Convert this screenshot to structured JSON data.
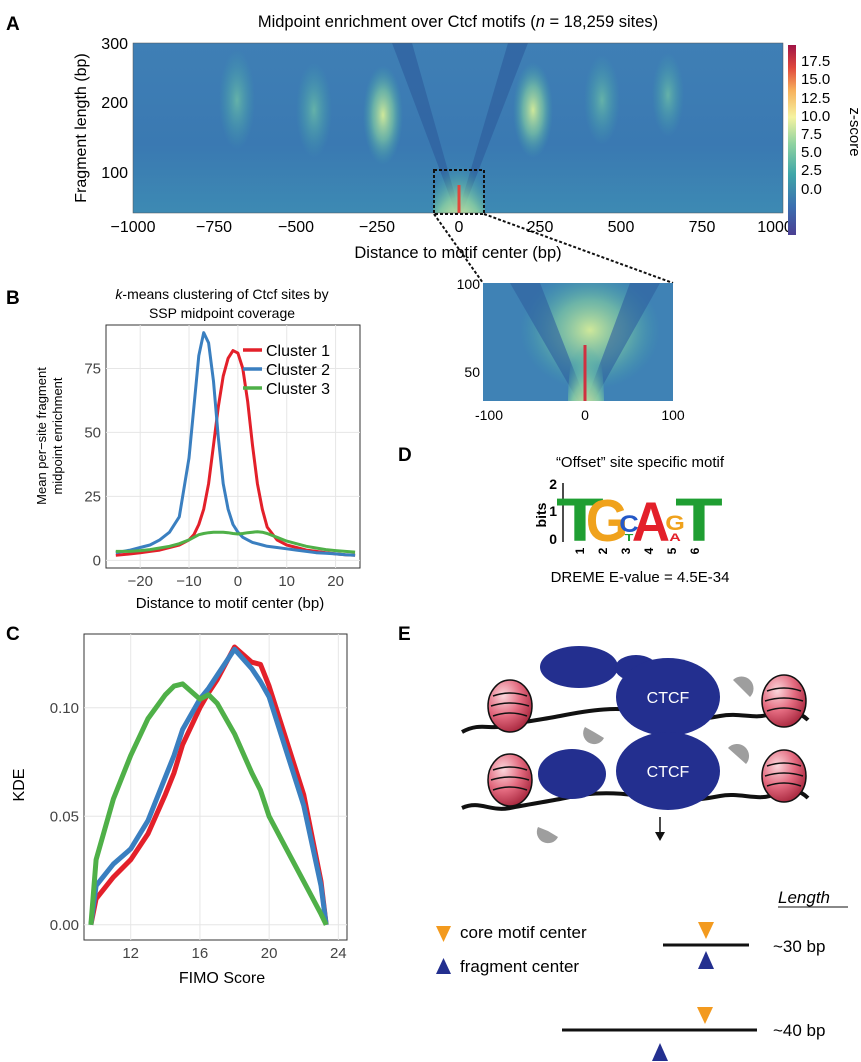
{
  "panels": {
    "A": {
      "letter": "A",
      "title_prefix": "Midpoint enrichment over Ctcf motifs (",
      "title_n": "n",
      "title_suffix": " = 18,259 sites)",
      "ylabel": "Fragment length (bp)",
      "xlabel": "Distance to motif center (bp)",
      "xticks": [
        "−1000",
        "−750",
        "−500",
        "−250",
        "0",
        "250",
        "500",
        "750",
        "1000"
      ],
      "yticks": [
        "300",
        "200",
        "100"
      ],
      "colorbar_label": "z-score",
      "colorbar_ticks": [
        "17.5",
        "15.0",
        "12.5",
        "10.0",
        "7.5",
        "5.0",
        "2.5",
        "0.0"
      ],
      "colors": [
        "#4b3f93",
        "#3b6fb0",
        "#3fa6a8",
        "#8fd3a0",
        "#f5f3a0",
        "#f7b15c",
        "#e0483c",
        "#a01446"
      ],
      "inset": {
        "yticks": [
          "100",
          "50"
        ],
        "xticks": [
          "-100",
          "0",
          "100"
        ]
      }
    },
    "B": {
      "letter": "B",
      "title_prefix": "k",
      "title_line1": "-means clustering of Ctcf sites by",
      "title_line2": "SSP midpoint coverage",
      "ylabel_line1": "Mean per−site fragment",
      "ylabel_line2": "midpoint enrichment",
      "xlabel": "Distance to motif center (bp)",
      "xticks": [
        "−20",
        "−10",
        "0",
        "10",
        "20"
      ],
      "yticks": [
        "0",
        "25",
        "50",
        "75"
      ]
    },
    "C": {
      "letter": "C",
      "ylabel": "KDE",
      "xlabel": "FIMO Score",
      "xticks": [
        "12",
        "16",
        "20",
        "24"
      ],
      "yticks": [
        "0.00",
        "0.05",
        "0.10"
      ]
    },
    "D": {
      "letter": "D",
      "title": "“Offset” site specific motif",
      "ylabel": "bits",
      "yticks": [
        "2",
        "1",
        "0"
      ],
      "positions": [
        "1",
        "2",
        "3",
        "4",
        "5",
        "6"
      ],
      "footer": "DREME E-value = 4.5E-34",
      "letters": {
        "pos1": "T",
        "pos2": "G",
        "pos3_top": "C",
        "pos3_bot": "T",
        "pos4": "A",
        "pos5_top": "G",
        "pos5_bot": "A",
        "pos6": "T"
      }
    },
    "E": {
      "letter": "E",
      "protein_label": "CTCF",
      "legend_core": "core motif center",
      "legend_fragment": "fragment center",
      "length_header": "Length",
      "length_30": "~30 bp",
      "length_40": "~40 bp"
    }
  },
  "chart_data": [
    {
      "panel": "B",
      "type": "line",
      "x": [
        -25,
        -22,
        -20,
        -18,
        -16,
        -14,
        -12,
        -10,
        -9,
        -8,
        -7,
        -6,
        -5,
        -4,
        -3,
        -2,
        -1,
        0,
        1,
        2,
        3,
        4,
        5,
        6,
        8,
        10,
        12,
        14,
        16,
        18,
        20,
        22,
        24
      ],
      "series": [
        {
          "name": "Cluster 1",
          "color": "#e3202a",
          "values": [
            2,
            2.5,
            3,
            3.5,
            4,
            5,
            6,
            8,
            10,
            14,
            20,
            30,
            45,
            60,
            72,
            79,
            82,
            81,
            75,
            62,
            45,
            30,
            20,
            13,
            8,
            6,
            5,
            4,
            3.5,
            3,
            2.5,
            2.2,
            2
          ]
        },
        {
          "name": "Cluster 2",
          "color": "#3a7fc0",
          "values": [
            3,
            4,
            5,
            6,
            8,
            11,
            17,
            40,
            60,
            80,
            89,
            85,
            70,
            48,
            30,
            20,
            14,
            11,
            9,
            8,
            7,
            6.5,
            6,
            5.5,
            5,
            4.5,
            4,
            3.5,
            3,
            2.8,
            2.5,
            2.2,
            2
          ]
        },
        {
          "name": "Cluster 3",
          "color": "#4fb048",
          "values": [
            3.5,
            3.5,
            3.8,
            4.2,
            4.8,
            5.5,
            6.5,
            8,
            9,
            10,
            10.5,
            10.8,
            11,
            11,
            11,
            10.8,
            10.5,
            10.3,
            10.5,
            10.8,
            11,
            11.2,
            11,
            10.5,
            9,
            7.5,
            6.5,
            5.5,
            4.8,
            4.2,
            3.8,
            3.5,
            3.2
          ]
        }
      ],
      "xlim": [
        -27,
        25
      ],
      "ylim": [
        -3,
        92
      ],
      "legend_position": "top-right",
      "grid": true
    },
    {
      "panel": "C",
      "type": "line",
      "x": [
        9.7,
        10,
        11,
        12,
        13,
        14,
        14.5,
        15,
        16,
        16.5,
        17,
        18,
        19,
        19.5,
        20,
        21,
        22,
        23,
        23.3
      ],
      "series": [
        {
          "name": "",
          "color": "#e3202a",
          "values": [
            0.0,
            0.012,
            0.022,
            0.03,
            0.042,
            0.06,
            0.07,
            0.083,
            0.1,
            0.107,
            0.113,
            0.128,
            0.121,
            0.12,
            0.11,
            0.085,
            0.06,
            0.02,
            0.0
          ]
        },
        {
          "name": "",
          "color": "#3a7fc0",
          "values": [
            0.0,
            0.018,
            0.028,
            0.035,
            0.048,
            0.068,
            0.078,
            0.09,
            0.104,
            0.109,
            0.115,
            0.127,
            0.118,
            0.112,
            0.105,
            0.08,
            0.055,
            0.018,
            0.0
          ]
        },
        {
          "name": "",
          "color": "#4fb048",
          "values": [
            0.0,
            0.03,
            0.058,
            0.078,
            0.095,
            0.106,
            0.11,
            0.111,
            0.104,
            0.106,
            0.102,
            0.088,
            0.07,
            0.062,
            0.05,
            0.035,
            0.02,
            0.005,
            0.0
          ]
        }
      ],
      "xlim": [
        9.3,
        24.5
      ],
      "ylim": [
        -0.007,
        0.134
      ],
      "grid": true
    }
  ]
}
